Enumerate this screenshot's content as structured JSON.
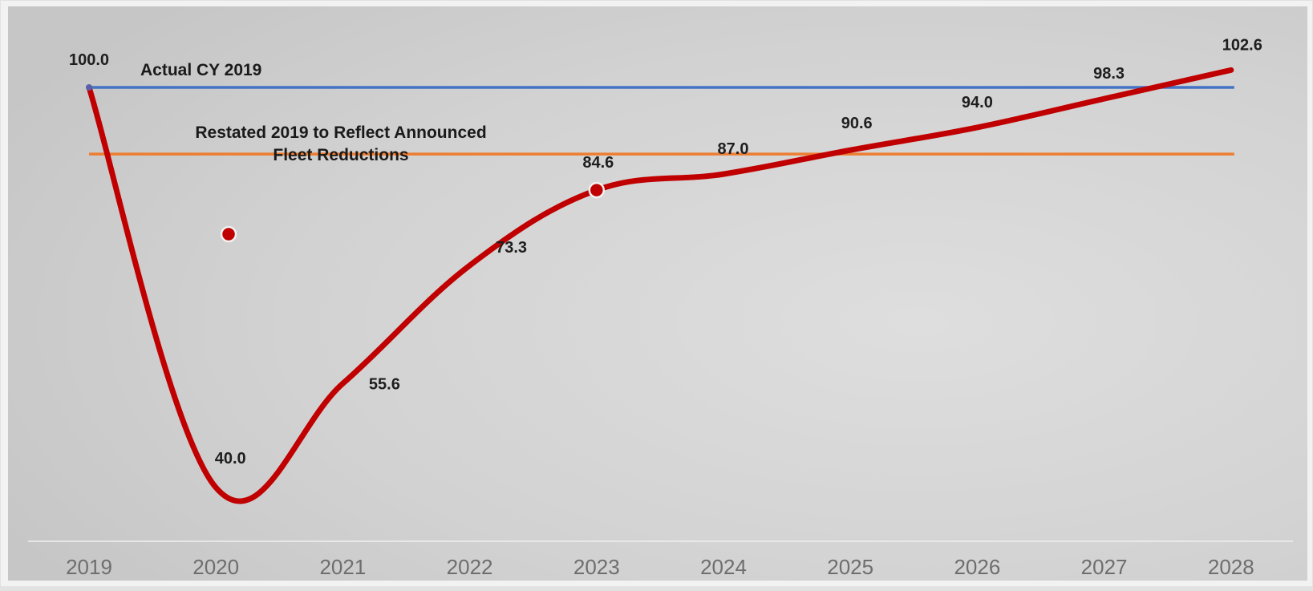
{
  "chart_data": {
    "type": "line",
    "categories": [
      "2019",
      "2020",
      "2021",
      "2022",
      "2023",
      "2024",
      "2025",
      "2026",
      "2027",
      "2028"
    ],
    "series": [
      {
        "values": [
          100.0,
          40.0,
          55.6,
          73.3,
          84.6,
          87.0,
          90.6,
          94.0,
          98.3,
          102.6
        ],
        "labels": [
          "100.0",
          "40.0",
          "55.6",
          "73.3",
          "84.6",
          "87.0",
          "90.6",
          "94.0",
          "98.3",
          "102.6"
        ],
        "color": "#c00000"
      }
    ],
    "reference_lines": [
      {
        "label_lines": [
          "Actual CY 2019"
        ],
        "value": 100.0,
        "color": "#4472c4"
      },
      {
        "label_lines": [
          "Restated 2019 to Reflect Announced",
          "Fleet Reductions"
        ],
        "value": 90.0,
        "color": "#ed7d31"
      }
    ],
    "extra_point": {
      "x": 2020.1,
      "y": 78.0,
      "color": "#c00000"
    },
    "highlight_point": {
      "category": "2023",
      "value": 84.6
    },
    "ylim": [
      35,
      106
    ],
    "grid": false,
    "legend": "none"
  }
}
